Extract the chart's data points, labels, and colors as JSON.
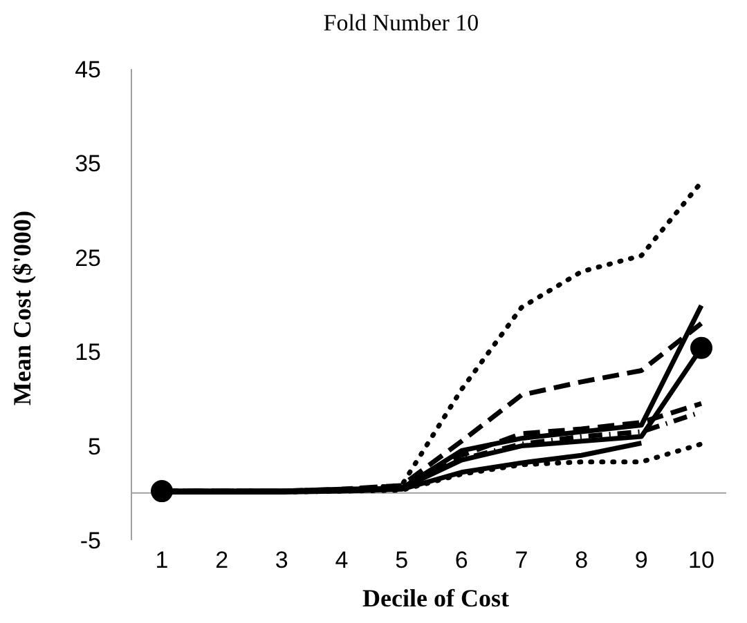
{
  "chart_data": {
    "type": "line",
    "title": "Fold Number 10",
    "xlabel": "Decile of Cost",
    "ylabel": "Mean Cost ($'000)",
    "categories": [
      "1",
      "2",
      "3",
      "4",
      "5",
      "6",
      "7",
      "8",
      "9",
      "10"
    ],
    "ylim": [
      -5,
      45
    ],
    "yticks": [
      -5,
      5,
      15,
      25,
      35,
      45
    ],
    "grid": false,
    "marker": "none",
    "series": [
      {
        "color": "#000000",
        "line_style": "dotted",
        "values": [
          0.2,
          0.2,
          0.2,
          0.4,
          0.8,
          11,
          19.7,
          23.5,
          25.2,
          33
        ]
      },
      {
        "color": "#000000",
        "line_style": "dashed",
        "values": [
          0.2,
          0.2,
          0.2,
          0.4,
          0.8,
          5.5,
          10.4,
          11.8,
          13,
          18
        ]
      },
      {
        "color": "#000000",
        "line_style": "solid",
        "values": [
          0.2,
          0.2,
          0.2,
          0.4,
          0.5,
          4.5,
          5.8,
          6.5,
          7.2,
          19.9
        ]
      },
      {
        "color": "#000000",
        "line_style": "solid",
        "values": [
          0.2,
          0.2,
          0.2,
          0.3,
          0.5,
          3.5,
          5,
          5.5,
          6,
          15.4
        ]
      },
      {
        "color": "#000000",
        "line_style": "dashed",
        "values": [
          0.2,
          0.2,
          0.2,
          0.3,
          0.6,
          4,
          6.3,
          6.8,
          7.5,
          9.5
        ]
      },
      {
        "color": "#000000",
        "line_style": "dashdot",
        "values": [
          0.2,
          0.2,
          0.2,
          0.3,
          0.5,
          3.6,
          5.2,
          6,
          6.5,
          8.6
        ]
      },
      {
        "color": "#000000",
        "line_style": "solid",
        "values": [
          0.1,
          0.1,
          0.1,
          0.2,
          0.4,
          2.2,
          3.2,
          4,
          5.3,
          null
        ]
      },
      {
        "color": "#000000",
        "line_style": "dotted",
        "values": [
          0.1,
          0.1,
          0.1,
          0.2,
          0.3,
          2,
          3,
          3.3,
          3.3,
          5.2
        ]
      },
      {
        "type": "scatter",
        "color": "#000000",
        "marker": "circle",
        "x": [
          "1",
          "10"
        ],
        "values": [
          0.2,
          15.4
        ]
      }
    ]
  }
}
